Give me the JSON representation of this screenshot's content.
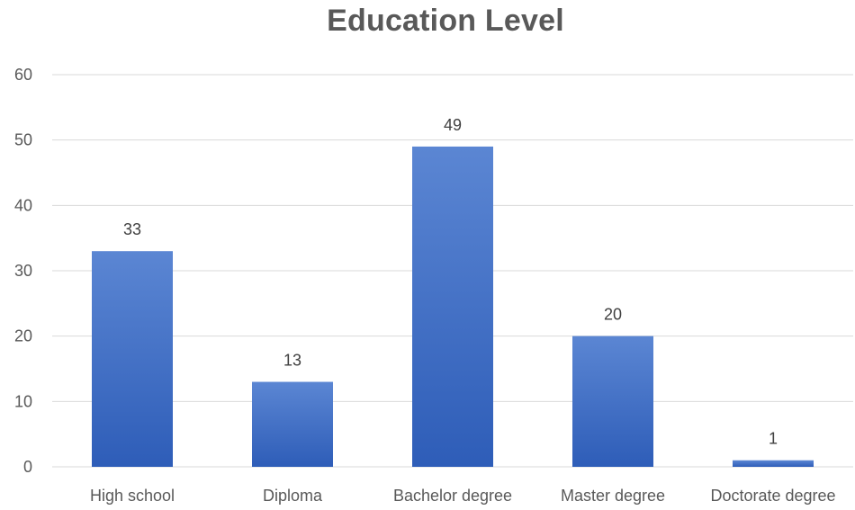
{
  "chart_data": {
    "type": "bar",
    "title": "Education Level",
    "xlabel": "",
    "ylabel": "",
    "categories": [
      "High school",
      "Diploma",
      "Bachelor degree",
      "Master degree",
      "Doctorate degree"
    ],
    "values": [
      33,
      13,
      49,
      20,
      1
    ],
    "ylim": [
      0,
      60
    ],
    "yticks": [
      "0",
      "10",
      "20",
      "30",
      "40",
      "50",
      "60"
    ],
    "data_labels": [
      "33",
      "13",
      "49",
      "20",
      "1"
    ],
    "grid": true,
    "legend": "none",
    "colors": {
      "bar_top": "#5B86D3",
      "bar_bottom": "#2E5DB8",
      "grid": "#D9D9D9",
      "text": "#595959"
    }
  }
}
